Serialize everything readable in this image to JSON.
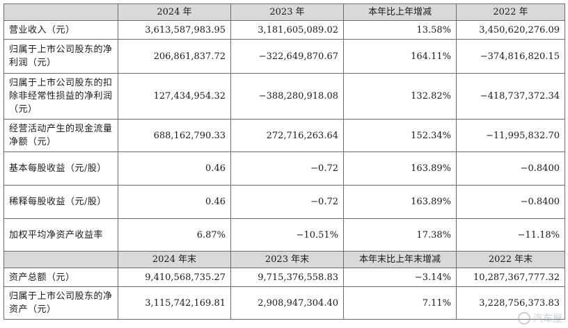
{
  "header1": [
    "",
    "2024 年",
    "2023 年",
    "本年比上年增减",
    "2022 年"
  ],
  "header2": [
    "",
    "2024 年末",
    "2023 年末",
    "本年末比上年末增减",
    "2022 年末"
  ],
  "rows1": [
    {
      "label": "营业收入（元）",
      "v": [
        "3,613,587,983.95",
        "3,181,605,089.02",
        "13.58%",
        "3,450,620,276.09"
      ]
    },
    {
      "label": "归属于上市公司股东的净利润（元）",
      "v": [
        "206,861,837.72",
        "−322,649,870.67",
        "164.11%",
        "−374,816,820.15"
      ]
    },
    {
      "label": "归属于上市公司股东的扣除非经常性损益的净利润（元）",
      "v": [
        "127,434,954.32",
        "−388,280,918.08",
        "132.82%",
        "−418,737,372.34"
      ]
    },
    {
      "label": "经营活动产生的现金流量净额（元）",
      "v": [
        "688,162,790.33",
        "272,716,263.64",
        "152.34%",
        "−11,995,832.70"
      ]
    },
    {
      "label": "基本每股收益（元/股）",
      "v": [
        "0.46",
        "−0.72",
        "163.89%",
        "−0.8400"
      ]
    },
    {
      "label": "稀释每股收益（元/股）",
      "v": [
        "0.46",
        "−0.72",
        "163.89%",
        "−0.8400"
      ]
    },
    {
      "label": "加权平均净资产收益率",
      "v": [
        "6.87%",
        "−10.51%",
        "17.38%",
        "−11.18%"
      ]
    }
  ],
  "rows2": [
    {
      "label": "资产总额（元）",
      "v": [
        "9,410,568,735.27",
        "9,715,376,558.83",
        "−3.14%",
        "10,287,367,777.32"
      ]
    },
    {
      "label": "归属于上市公司股东的净资产（元）",
      "v": [
        "3,115,742,169.81",
        "2,908,947,304.40",
        "7.11%",
        "3,228,756,373.83"
      ]
    }
  ],
  "watermark": "汽车屋"
}
